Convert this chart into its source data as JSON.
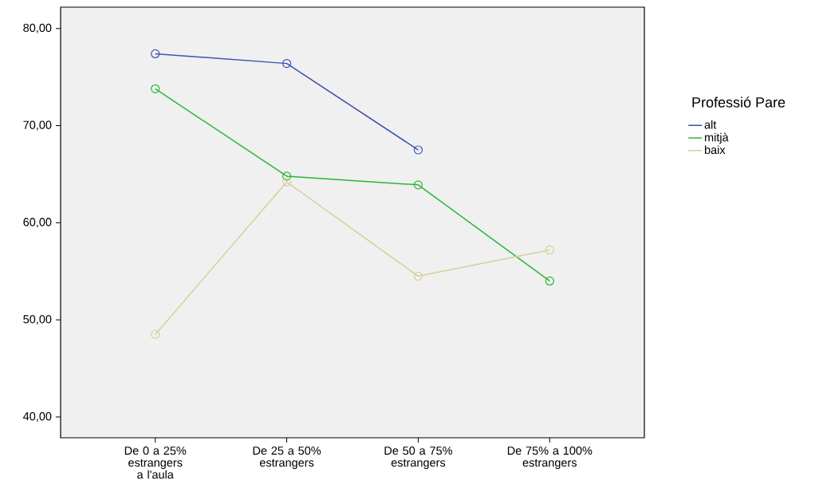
{
  "chart_data": {
    "type": "line",
    "categories": [
      "De 0 a 25% estrangers a l'aula",
      "De 25 a 50% estrangers",
      "De 50 a 75% estrangers",
      "De 75% a 100% estrangers"
    ],
    "series": [
      {
        "name": "alt",
        "color": "#3f51b1",
        "values": [
          77.4,
          76.4,
          67.5,
          null
        ]
      },
      {
        "name": "mitjà",
        "color": "#2ab53a",
        "values": [
          73.8,
          64.8,
          63.9,
          54.0
        ]
      },
      {
        "name": "baix",
        "color": "#d6d09a",
        "values": [
          48.5,
          64.2,
          54.5,
          57.2
        ]
      }
    ],
    "legend_title": "Professió Pare",
    "legend": "right",
    "marker": "circle",
    "line_style": "solid",
    "ylim": [
      37.86,
      82.2
    ],
    "yticks": [
      {
        "value": 40,
        "label": "40,00"
      },
      {
        "value": 50,
        "label": "50,00"
      },
      {
        "value": 60,
        "label": "60,00"
      },
      {
        "value": 70,
        "label": "70,00"
      },
      {
        "value": 80,
        "label": "80,00"
      }
    ]
  }
}
